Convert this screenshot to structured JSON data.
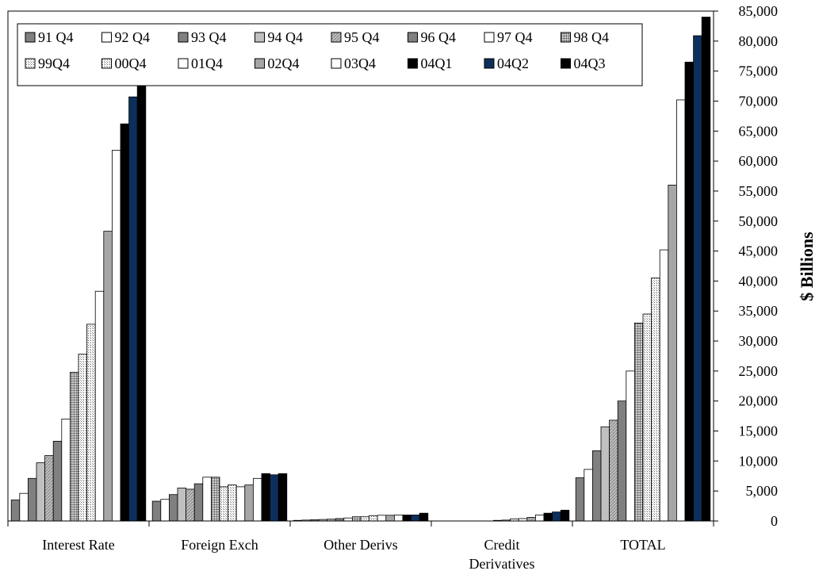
{
  "chart_data": {
    "type": "bar",
    "title": "",
    "xlabel": "",
    "ylabel": "$ Billions",
    "y_axis_side": "right",
    "ylim": [
      0,
      85000
    ],
    "y_ticks": [
      "0",
      "5,000",
      "10,000",
      "15,000",
      "20,000",
      "25,000",
      "30,000",
      "35,000",
      "40,000",
      "45,000",
      "50,000",
      "55,000",
      "60,000",
      "65,000",
      "70,000",
      "75,000",
      "80,000",
      "85,000"
    ],
    "legend_position": "top-left",
    "categories": [
      "Interest Rate",
      "Foreign Exch",
      "Other Derivs",
      "Credit Derivatives",
      "TOTAL"
    ],
    "category_labels": [
      [
        "Interest Rate"
      ],
      [
        "Foreign Exch"
      ],
      [
        "Other Derivs"
      ],
      [
        "Credit",
        "Derivatives"
      ],
      [
        "TOTAL"
      ]
    ],
    "series": [
      {
        "name": "91 Q4",
        "values": [
          3500,
          3300,
          100,
          0,
          7200
        ],
        "fill": "#808080",
        "pattern": "solid"
      },
      {
        "name": "92 Q4",
        "values": [
          4600,
          3600,
          150,
          0,
          8600
        ],
        "fill": "#ffffff",
        "pattern": "solid"
      },
      {
        "name": "93 Q4",
        "values": [
          7100,
          4400,
          200,
          0,
          11700
        ],
        "fill": "#808080",
        "pattern": "solid"
      },
      {
        "name": "94 Q4",
        "values": [
          9700,
          5500,
          250,
          0,
          15700
        ],
        "fill": "#c0c0c0",
        "pattern": "solid"
      },
      {
        "name": "95 Q4",
        "values": [
          10900,
          5300,
          300,
          0,
          16800
        ],
        "fill": "#c0c0c0",
        "pattern": "hatch"
      },
      {
        "name": "96 Q4",
        "values": [
          13300,
          6200,
          400,
          0,
          20000
        ],
        "fill": "#808080",
        "pattern": "solid"
      },
      {
        "name": "97 Q4",
        "values": [
          17000,
          7300,
          500,
          0,
          25000
        ],
        "fill": "#ffffff",
        "pattern": "solid"
      },
      {
        "name": "98 Q4",
        "values": [
          24800,
          7300,
          700,
          100,
          33000
        ],
        "fill": "#808080",
        "pattern": "grid"
      },
      {
        "name": "99Q4",
        "values": [
          27800,
          5700,
          700,
          150,
          34500
        ],
        "fill": "#e0e0e0",
        "pattern": "dots"
      },
      {
        "name": "00Q4",
        "values": [
          32800,
          6000,
          900,
          350,
          40500
        ],
        "fill": "#ffffff",
        "pattern": "dots"
      },
      {
        "name": "01Q4",
        "values": [
          38300,
          5700,
          950,
          400,
          45200
        ],
        "fill": "#ffffff",
        "pattern": "solid"
      },
      {
        "name": "02Q4",
        "values": [
          48300,
          6000,
          950,
          600,
          56000
        ],
        "fill": "#a6a6a6",
        "pattern": "solid"
      },
      {
        "name": "03Q4",
        "values": [
          61800,
          7100,
          1000,
          1000,
          70200
        ],
        "fill": "#ffffff",
        "pattern": "solid"
      },
      {
        "name": "04Q1",
        "values": [
          66200,
          7900,
          1000,
          1300,
          76500
        ],
        "fill": "#000000",
        "pattern": "solid"
      },
      {
        "name": "04Q2",
        "values": [
          70700,
          7700,
          1000,
          1500,
          80900
        ],
        "fill": "#0d2f5c",
        "pattern": "solid"
      },
      {
        "name": "04Q3",
        "values": [
          73000,
          7900,
          1300,
          1800,
          84000
        ],
        "fill": "#000000",
        "pattern": "solid"
      }
    ]
  }
}
